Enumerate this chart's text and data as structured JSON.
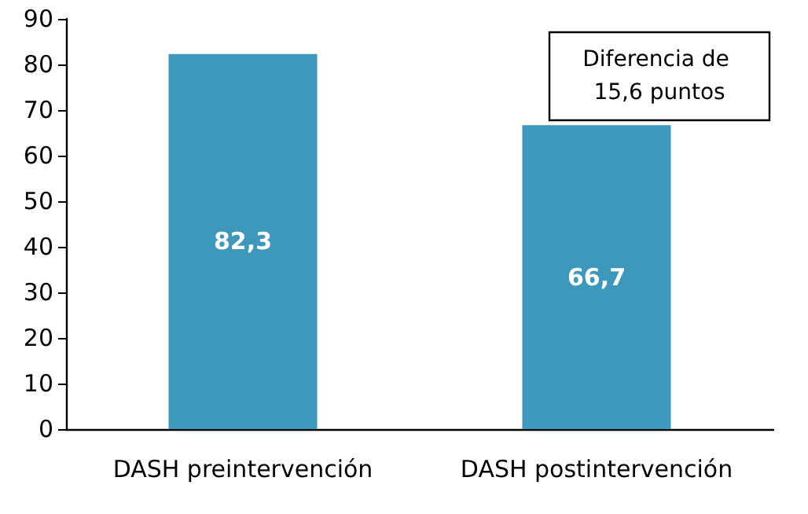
{
  "chart_data": {
    "type": "bar",
    "categories": [
      "DASH preintervención",
      "DASH postintervención"
    ],
    "values": [
      82.3,
      66.7
    ],
    "value_labels": [
      "82,3",
      "66,7"
    ],
    "color": "#3d98bb",
    "ylim": [
      0,
      90
    ],
    "yticks": [
      0,
      10,
      20,
      30,
      40,
      50,
      60,
      70,
      80,
      90
    ],
    "grid": false,
    "annotations": [
      "Diferencia de 15,6 puntos"
    ]
  }
}
